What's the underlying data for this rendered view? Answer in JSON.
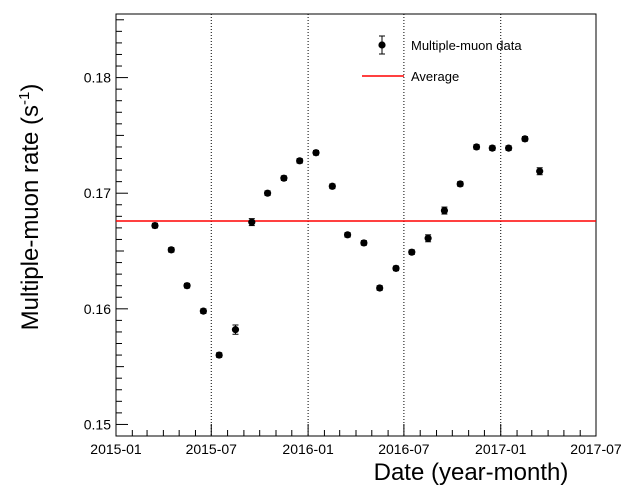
{
  "chart_data": {
    "type": "scatter",
    "xlabel": "Date (year-month)",
    "ylabel": "Multiple-muon rate (s",
    "ylabel_sup": "-1",
    "ylabel_suffix": ")",
    "xlim": [
      "2015-01",
      "2017-07"
    ],
    "ylim": [
      0.149,
      0.1855
    ],
    "x_ticks": [
      "2015-01",
      "2015-07",
      "2016-01",
      "2016-07",
      "2017-01",
      "2017-07"
    ],
    "y_ticks": [
      0.15,
      0.16,
      0.17,
      0.18
    ],
    "y_tick_labels": [
      "0.15",
      "0.16",
      "0.17",
      "0.18"
    ],
    "vertical_reference_lines": [
      "2015-07",
      "2016-01",
      "2016-07",
      "2017-01"
    ],
    "series": [
      {
        "name": "Multiple-muon data",
        "marker": "circle",
        "color": "#000000",
        "x": [
          "2015-03-16",
          "2015-04-16",
          "2015-05-16",
          "2015-06-16",
          "2015-07-16",
          "2015-08-16",
          "2015-09-16",
          "2015-10-16",
          "2015-11-16",
          "2015-12-16",
          "2016-01-16",
          "2016-02-16",
          "2016-03-16",
          "2016-04-16",
          "2016-05-16",
          "2016-06-16",
          "2016-07-16",
          "2016-08-16",
          "2016-09-16",
          "2016-10-16",
          "2016-11-16",
          "2016-12-16",
          "2017-01-16",
          "2017-02-16",
          "2017-03-16"
        ],
        "y": [
          0.1672,
          0.1651,
          0.162,
          0.1598,
          0.156,
          0.1582,
          0.1675,
          0.17,
          0.1713,
          0.1728,
          0.1735,
          0.1706,
          0.1664,
          0.1657,
          0.1618,
          0.1635,
          0.1649,
          0.1661,
          0.1685,
          0.1708,
          0.174,
          0.1739,
          0.1739,
          0.1747,
          0.1719
        ],
        "yerr": [
          0.0002,
          0.0002,
          0.0002,
          0.0002,
          0.0002,
          0.0004,
          0.0003,
          0.0002,
          0.0002,
          0.0002,
          0.0002,
          0.0002,
          0.0002,
          0.0002,
          0.0002,
          0.0002,
          0.0002,
          0.0003,
          0.0003,
          0.0002,
          0.0002,
          0.0002,
          0.0002,
          0.0002,
          0.0003
        ]
      },
      {
        "name": "Average",
        "type": "hline",
        "y": 0.1676,
        "color": "#ff0000"
      }
    ],
    "legend": {
      "position": "top-right",
      "entries": [
        "Multiple-muon data",
        "Average"
      ]
    },
    "grid": false
  }
}
